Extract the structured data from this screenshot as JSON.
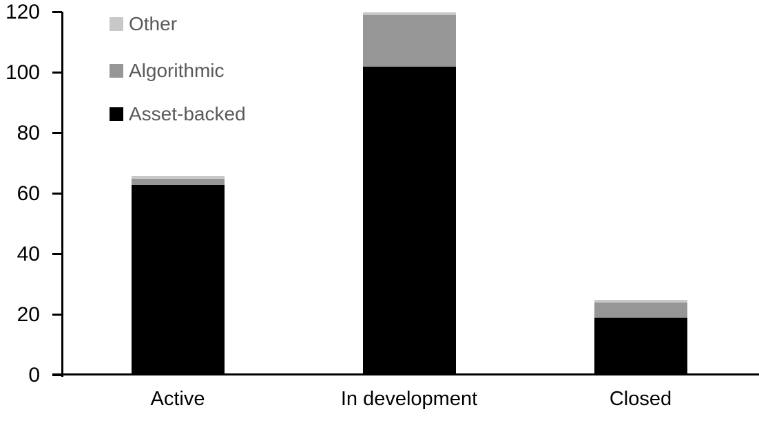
{
  "chart_data": {
    "type": "bar",
    "stacked": true,
    "title": "",
    "xlabel": "",
    "ylabel": "",
    "categories": [
      "Active",
      "In development",
      "Closed"
    ],
    "series": [
      {
        "name": "Asset-backed",
        "color": "#000000",
        "values": [
          63,
          102,
          19
        ]
      },
      {
        "name": "Algorithmic",
        "color": "#969696",
        "values": [
          2,
          17,
          5
        ]
      },
      {
        "name": "Other",
        "color": "#c8c8c8",
        "values": [
          1,
          1,
          1
        ]
      }
    ],
    "stack_totals": [
      66,
      120,
      25
    ],
    "ylim": [
      0,
      120
    ],
    "yticks": [
      0,
      20,
      40,
      60,
      80,
      100,
      120
    ],
    "grid": false,
    "legend_position": "top-left-inside",
    "legend": [
      {
        "label": "Other",
        "color": "#c8c8c8"
      },
      {
        "label": "Algorithmic",
        "color": "#969696"
      },
      {
        "label": "Asset-backed",
        "color": "#000000"
      }
    ],
    "legend_text_color": "#595959",
    "axis_color": "#000000"
  }
}
